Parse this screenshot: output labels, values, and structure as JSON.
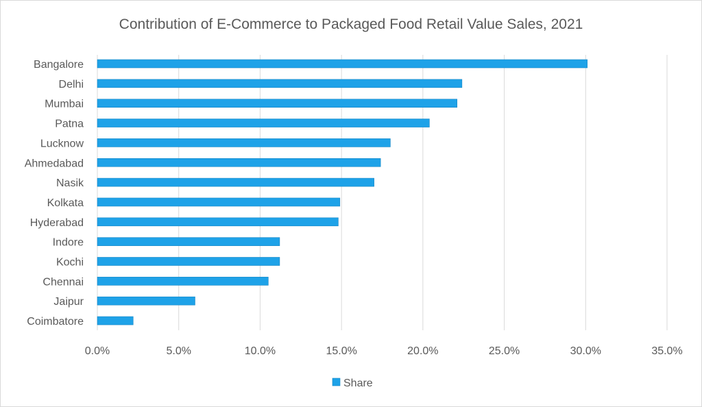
{
  "chart_data": {
    "type": "bar",
    "orientation": "horizontal",
    "title": "Contribution of E-Commerce to Packaged Food Retail Value Sales, 2021",
    "categories": [
      "Bangalore",
      "Delhi",
      "Mumbai",
      "Patna",
      "Lucknow",
      "Ahmedabad",
      "Nasik",
      "Kolkata",
      "Hyderabad",
      "Indore",
      "Kochi",
      "Chennai",
      "Jaipur",
      "Coimbatore"
    ],
    "series": [
      {
        "name": "Share",
        "color": "#1ea2e8",
        "values": [
          30.1,
          22.4,
          22.1,
          20.4,
          18.0,
          17.4,
          17.0,
          14.9,
          14.8,
          11.2,
          11.2,
          10.5,
          6.0,
          2.2
        ]
      }
    ],
    "xlim": [
      0,
      35
    ],
    "x_ticks": [
      0,
      5,
      10,
      15,
      20,
      25,
      30,
      35
    ],
    "x_tick_labels": [
      "0.0%",
      "5.0%",
      "10.0%",
      "15.0%",
      "20.0%",
      "25.0%",
      "30.0%",
      "35.0%"
    ],
    "grid": true,
    "legend_position": "bottom"
  }
}
